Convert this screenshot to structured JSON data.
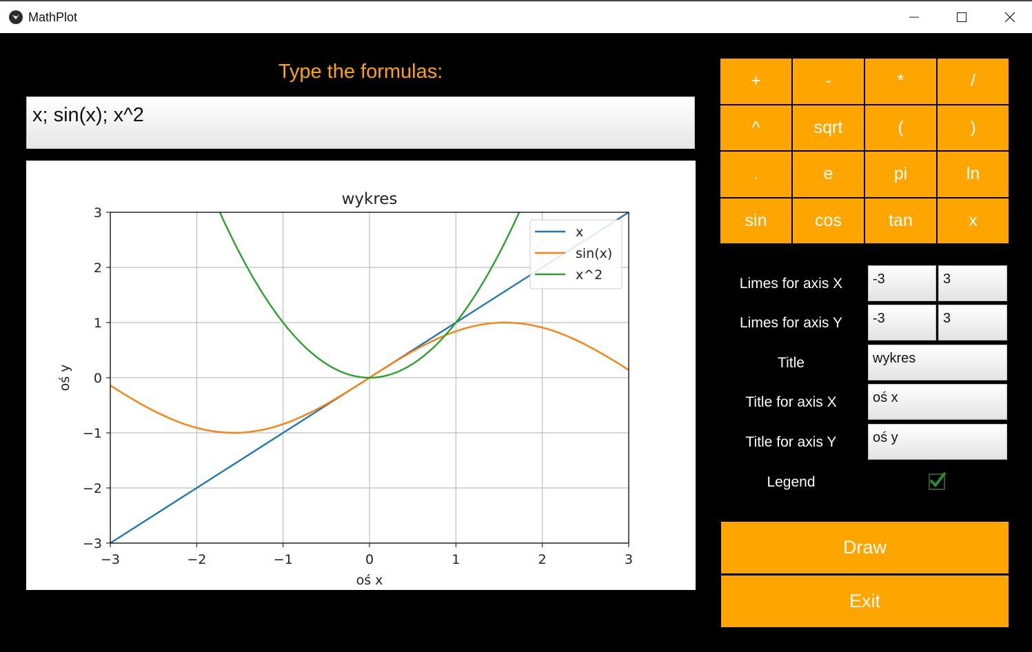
{
  "window": {
    "title": "MathPlot"
  },
  "prompt_label": "Type the formulas:",
  "formula_input": "x; sin(x); x^2",
  "keypad": [
    "+",
    "-",
    "*",
    "/",
    "^",
    "sqrt",
    "(",
    ")",
    ".",
    "e",
    "pi",
    "ln",
    "sin",
    "cos",
    "tan",
    "x"
  ],
  "options": {
    "x_limits_label": "Limes for axis X",
    "x_min": "-3",
    "x_max": "3",
    "y_limits_label": "Limes for axis Y",
    "y_min": "-3",
    "y_max": "3",
    "title_label": "Title",
    "title_value": "wykres",
    "x_title_label": "Title for axis X",
    "x_title_value": "oś x",
    "y_title_label": "Title for axis Y",
    "y_title_value": "oś y",
    "legend_label": "Legend",
    "legend_checked": true
  },
  "buttons": {
    "draw": "Draw",
    "exit": "Exit"
  },
  "colors": {
    "accent": "#ffa500",
    "background": "#000000",
    "check": "#2e8b2e"
  },
  "chart_data": {
    "type": "line",
    "title": "wykres",
    "xlabel": "oś x",
    "ylabel": "oś y",
    "xlim": [
      -3,
      3
    ],
    "ylim": [
      -3,
      3
    ],
    "x_ticks": [
      -3,
      -2,
      -1,
      0,
      1,
      2,
      3
    ],
    "y_ticks": [
      -3,
      -2,
      -1,
      0,
      1,
      2,
      3
    ],
    "x_tick_labels": [
      "−3",
      "−2",
      "−1",
      "0",
      "1",
      "2",
      "3"
    ],
    "y_tick_labels": [
      "−3",
      "−2",
      "−1",
      "0",
      "1",
      "2",
      "3"
    ],
    "grid": true,
    "legend_position": "top-right",
    "series": [
      {
        "name": "x",
        "color": "#1f77b4",
        "x": [
          -3,
          -2,
          -1,
          0,
          1,
          2,
          3
        ],
        "y": [
          -3,
          -2,
          -1,
          0,
          1,
          2,
          3
        ]
      },
      {
        "name": "sin(x)",
        "color": "#ff7f0e",
        "x": [
          -3,
          -2.5,
          -2,
          -1.5708,
          -1,
          -0.5,
          0,
          0.5,
          1,
          1.5708,
          2,
          2.5,
          3
        ],
        "y": [
          -0.14,
          -0.6,
          -0.91,
          -1.0,
          -0.84,
          -0.48,
          0,
          0.48,
          0.84,
          1.0,
          0.91,
          0.6,
          0.14
        ]
      },
      {
        "name": "x^2",
        "color": "#2ca02c",
        "x": [
          -1.732,
          -1.5,
          -1,
          -0.5,
          0,
          0.5,
          1,
          1.5,
          1.732
        ],
        "y": [
          3,
          2.25,
          1,
          0.25,
          0,
          0.25,
          1,
          2.25,
          3
        ]
      }
    ]
  }
}
